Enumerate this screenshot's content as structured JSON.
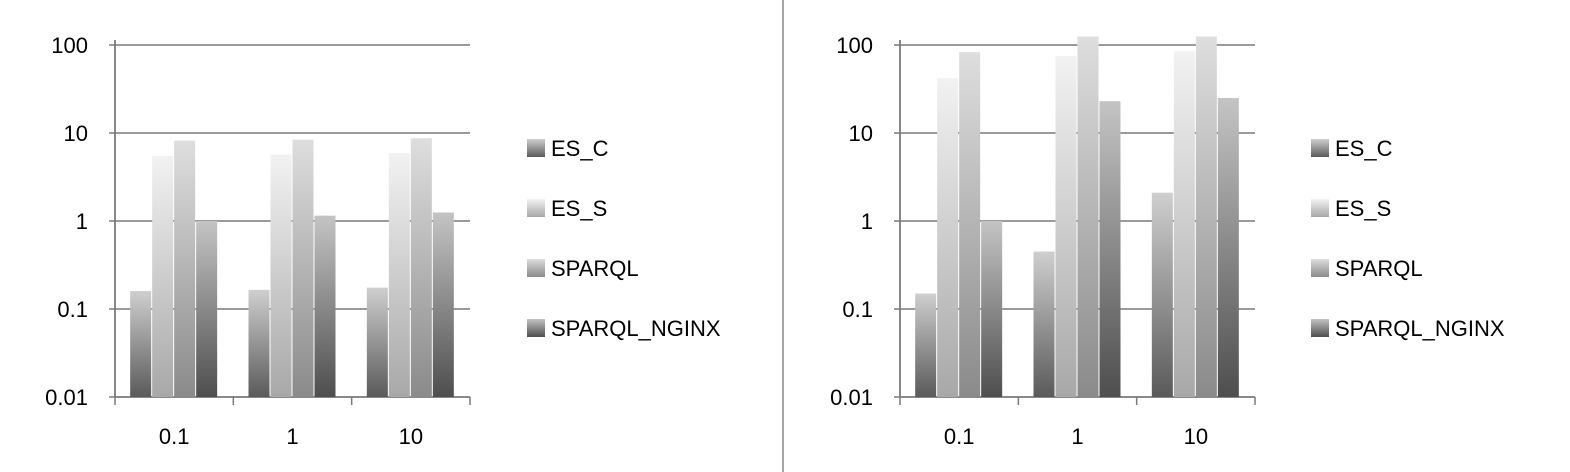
{
  "chart_data": [
    {
      "type": "bar",
      "title": "",
      "xlabel": "",
      "ylabel": "",
      "yscale": "log",
      "ylim": [
        0.01,
        100
      ],
      "grid": true,
      "legend_position": "right",
      "categories": [
        "0.1",
        "1",
        "10"
      ],
      "y_tick_labels": [
        "100",
        "10",
        "1",
        "0.1",
        "0.01"
      ],
      "series": [
        {
          "name": "ES_C",
          "values": [
            0.16,
            0.165,
            0.175
          ]
        },
        {
          "name": "ES_S",
          "values": [
            5.5,
            5.7,
            5.9
          ]
        },
        {
          "name": "SPARQL",
          "values": [
            8.2,
            8.4,
            8.7
          ]
        },
        {
          "name": "SPARQL_NGINX",
          "values": [
            1.0,
            1.15,
            1.25
          ]
        }
      ]
    },
    {
      "type": "bar",
      "title": "",
      "xlabel": "",
      "ylabel": "",
      "yscale": "log",
      "ylim": [
        0.01,
        100
      ],
      "grid": true,
      "legend_position": "right",
      "categories": [
        "0.1",
        "1",
        "10"
      ],
      "y_tick_labels": [
        "100",
        "10",
        "1",
        "0.1",
        "0.01"
      ],
      "series": [
        {
          "name": "ES_C",
          "values": [
            0.15,
            0.45,
            2.1
          ]
        },
        {
          "name": "ES_S",
          "values": [
            42,
            75,
            85
          ]
        },
        {
          "name": "SPARQL",
          "values": [
            83,
            125,
            125
          ]
        },
        {
          "name": "SPARQL_NGINX",
          "values": [
            1.0,
            23,
            25
          ]
        }
      ]
    }
  ],
  "style": {
    "grid_color": "#8c8c8c",
    "axis_color": "#7a7a7a",
    "divider_color": "#888888",
    "series_colors": [
      {
        "top": "#cfcfcf",
        "bottom": "#5a5a5a"
      },
      {
        "top": "#f2f2f2",
        "bottom": "#a8a8a8"
      },
      {
        "top": "#dedede",
        "bottom": "#8a8a8a"
      },
      {
        "top": "#c4c4c4",
        "bottom": "#4e4e4e"
      }
    ]
  }
}
